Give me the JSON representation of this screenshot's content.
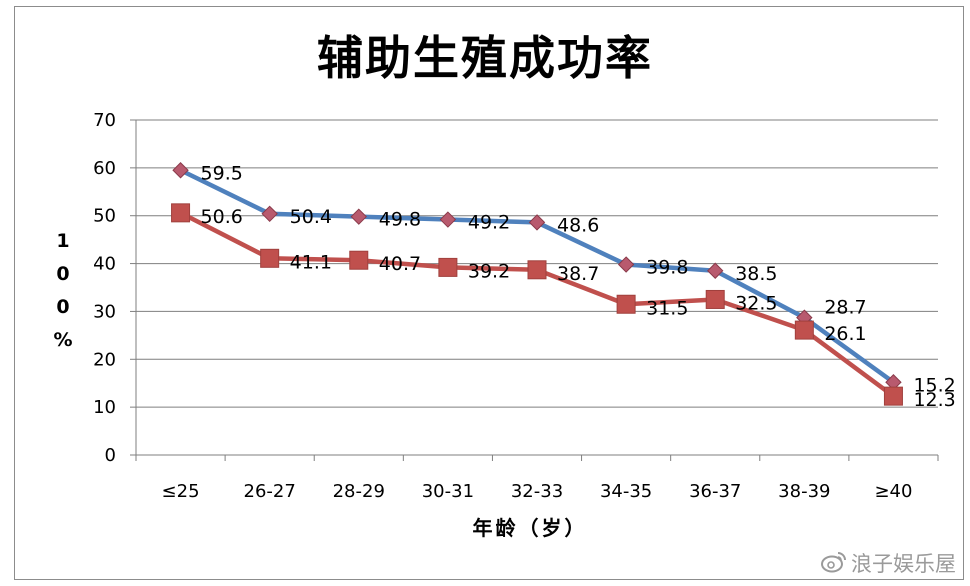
{
  "chart_data": {
    "type": "line",
    "title": "辅助生殖成功率",
    "xlabel": "年龄（岁）",
    "ylabel_chars": [
      "1",
      "0",
      "0",
      "%"
    ],
    "ylim": [
      0,
      70
    ],
    "yticks": [
      0,
      10,
      20,
      30,
      40,
      50,
      60,
      70
    ],
    "categories": [
      "≤25",
      "26-27",
      "28-29",
      "30-31",
      "32-33",
      "34-35",
      "36-37",
      "38-39",
      "≥40"
    ],
    "grid": true,
    "legend": "none",
    "series": [
      {
        "color": "#4f81bd",
        "marker_color": "#c0504d",
        "marker": "diamond",
        "values": [
          59.5,
          50.4,
          49.8,
          49.2,
          48.6,
          39.8,
          38.5,
          28.7,
          15.2
        ]
      },
      {
        "color": "#c0504d",
        "marker_color": "#c0504d",
        "marker": "square",
        "values": [
          50.6,
          41.1,
          40.7,
          39.2,
          38.7,
          31.5,
          32.5,
          26.1,
          12.3
        ]
      }
    ]
  },
  "watermark": {
    "text": "浪子娱乐屋"
  }
}
